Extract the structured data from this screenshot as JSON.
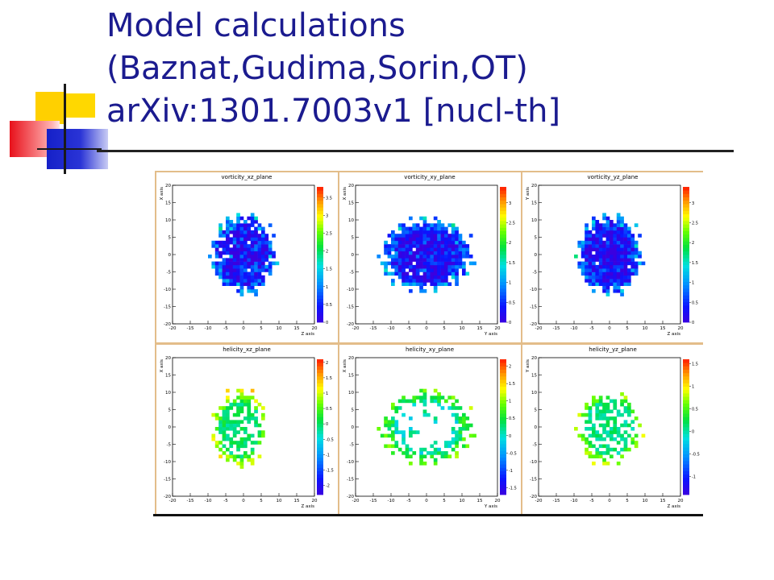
{
  "slide": {
    "title_lines": [
      "Model calculations",
      "(Baznat,Gudima,Sorin,OT)",
      "arXiv:1301.7003v1 [nucl-th]"
    ],
    "title_color": "#1b1b8f"
  },
  "chart_data": [
    {
      "type": "heatmap",
      "title": "vorticity_xz_plane",
      "xlabel": "Z axis",
      "ylabel": "X axis",
      "xlim": [
        -20,
        20
      ],
      "ylim": [
        -20,
        20
      ],
      "xticks": [
        "-20",
        "-15",
        "-10",
        "-5",
        "0",
        "5",
        "10",
        "15",
        "20"
      ],
      "yticks": [
        "-20",
        "-15",
        "-10",
        "-5",
        "0",
        "5",
        "10",
        "15",
        "20"
      ],
      "colorbar_ticks": [
        "0",
        "0.5",
        "1",
        "1.5",
        "2",
        "2.5",
        "3",
        "3.5"
      ],
      "zlim": [
        0,
        3.8
      ],
      "region": {
        "shape": "blob",
        "cx": 0,
        "cy": 0,
        "rx": 8.5,
        "ry": 11,
        "coverage": 0.95,
        "base_level": 0.05,
        "rim_level": 0.4,
        "noise": 0.35
      }
    },
    {
      "type": "heatmap",
      "title": "vorticity_xy_plane",
      "xlabel": "Y axis",
      "ylabel": "X axis",
      "xlim": [
        -20,
        20
      ],
      "ylim": [
        -20,
        20
      ],
      "xticks": [
        "-20",
        "-15",
        "-10",
        "-5",
        "0",
        "5",
        "10",
        "15",
        "20"
      ],
      "yticks": [
        "-20",
        "-15",
        "-10",
        "-5",
        "0",
        "5",
        "10",
        "15",
        "20"
      ],
      "colorbar_ticks": [
        "0",
        "0.5",
        "1",
        "1.5",
        "2",
        "2.5",
        "3"
      ],
      "zlim": [
        0,
        3.4
      ],
      "region": {
        "shape": "blob",
        "cx": 0,
        "cy": 0,
        "rx": 12,
        "ry": 10,
        "coverage": 0.97,
        "base_level": 0.05,
        "rim_level": 0.45,
        "noise": 0.3
      }
    },
    {
      "type": "heatmap",
      "title": "vorticity_yz_plane",
      "xlabel": "Z axis",
      "ylabel": "Y axis",
      "xlim": [
        -20,
        20
      ],
      "ylim": [
        -20,
        20
      ],
      "xticks": [
        "-20",
        "-15",
        "-10",
        "-5",
        "0",
        "5",
        "10",
        "15",
        "20"
      ],
      "yticks": [
        "-20",
        "-15",
        "-10",
        "-5",
        "0",
        "5",
        "10",
        "15",
        "20"
      ],
      "colorbar_ticks": [
        "0",
        "0.5",
        "1",
        "1.5",
        "2",
        "2.5",
        "3"
      ],
      "zlim": [
        0,
        3.4
      ],
      "region": {
        "shape": "blob",
        "cx": 0,
        "cy": 0,
        "rx": 8.5,
        "ry": 11,
        "coverage": 0.97,
        "base_level": 0.05,
        "rim_level": 0.4,
        "noise": 0.3
      }
    },
    {
      "type": "heatmap",
      "title": "helicity_xz_plane",
      "xlabel": "Z axis",
      "ylabel": "X axis",
      "xlim": [
        -20,
        20
      ],
      "ylim": [
        -20,
        20
      ],
      "xticks": [
        "-20",
        "-15",
        "-10",
        "-5",
        "0",
        "5",
        "10",
        "15",
        "20"
      ],
      "yticks": [
        "-20",
        "-15",
        "-10",
        "-5",
        "0",
        "5",
        "10",
        "15",
        "20"
      ],
      "colorbar_ticks": [
        "-2",
        "-1.5",
        "-1",
        "-0.5",
        "0",
        "0.5",
        "1",
        "1.5",
        "2"
      ],
      "zlim": [
        -2.3,
        2.1
      ],
      "region": {
        "shape": "blob",
        "cx": -1,
        "cy": -0.5,
        "rx": 7.5,
        "ry": 10.5,
        "coverage": 0.55,
        "base_level": 0.52,
        "rim_level": 0.55,
        "noise": 0.12
      }
    },
    {
      "type": "heatmap",
      "title": "helicity_xy_plane",
      "xlabel": "Y axis",
      "ylabel": "X axis",
      "xlim": [
        -20,
        20
      ],
      "ylim": [
        -20,
        20
      ],
      "xticks": [
        "-20",
        "-15",
        "-10",
        "-5",
        "0",
        "5",
        "10",
        "15",
        "20"
      ],
      "yticks": [
        "-20",
        "-15",
        "-10",
        "-5",
        "0",
        "5",
        "10",
        "15",
        "20"
      ],
      "colorbar_ticks": [
        "-1.5",
        "-1",
        "-0.5",
        "0",
        "0.5",
        "1",
        "1.5",
        "2"
      ],
      "zlim": [
        -1.7,
        2.2
      ],
      "region": {
        "shape": "ring",
        "cx": 0,
        "cy": 0,
        "rx": 12,
        "ry": 10,
        "coverage": 0.75,
        "base_level": 0.45,
        "rim_level": 0.42,
        "noise": 0.15
      }
    },
    {
      "type": "heatmap",
      "title": "helicity_yz_plane",
      "xlabel": "Z axis",
      "ylabel": "Y axis",
      "xlim": [
        -20,
        20
      ],
      "ylim": [
        -20,
        20
      ],
      "xticks": [
        "-20",
        "-15",
        "-10",
        "-5",
        "0",
        "5",
        "10",
        "15",
        "20"
      ],
      "yticks": [
        "-20",
        "-15",
        "-10",
        "-5",
        "0",
        "5",
        "10",
        "15",
        "20"
      ],
      "colorbar_ticks": [
        "-1",
        "-0.5",
        "0",
        "0.5",
        "1",
        "1.5"
      ],
      "zlim": [
        -1.4,
        1.6
      ],
      "region": {
        "shape": "blob",
        "cx": 0,
        "cy": 0,
        "rx": 8.5,
        "ry": 10.5,
        "coverage": 0.5,
        "base_level": 0.5,
        "rim_level": 0.5,
        "noise": 0.12
      }
    }
  ]
}
